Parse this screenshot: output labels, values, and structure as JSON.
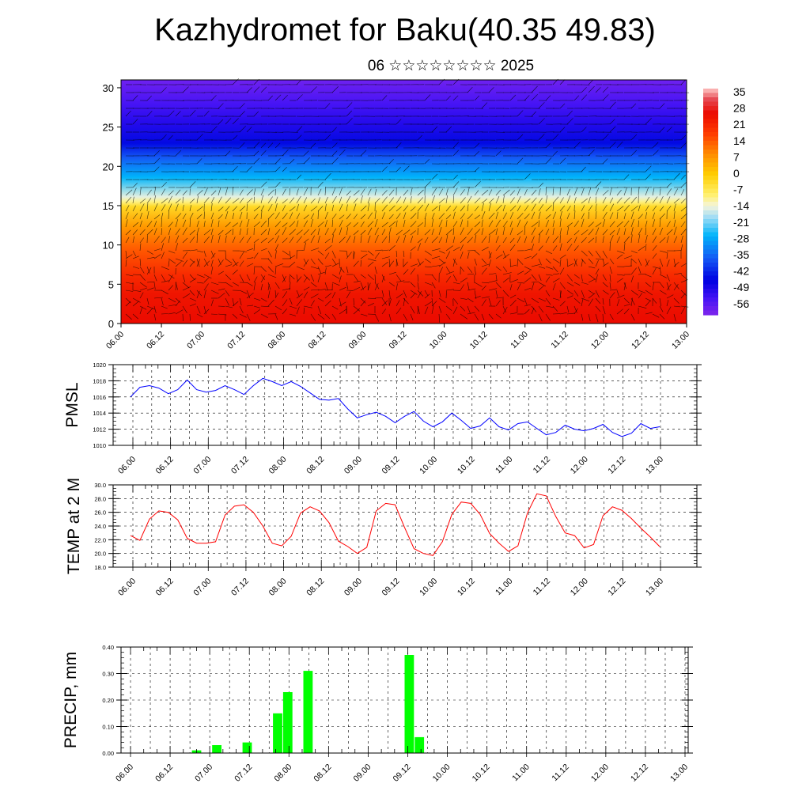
{
  "header": {
    "title": "Kazhydromet for Baku(40.35 49.83)",
    "subtitle": "06 ☆☆☆☆☆☆☆☆ 2025"
  },
  "chart_data": [
    {
      "id": "cross-section",
      "type": "heatmap",
      "title": "",
      "ylabel": "",
      "xlabel": "",
      "x_ticks": [
        "06.00",
        "06.12",
        "07.00",
        "07.12",
        "08.00",
        "08.12",
        "09.00",
        "09.12",
        "10.00",
        "10.12",
        "11.00",
        "11.12",
        "12.00",
        "12.12",
        "13.00"
      ],
      "y_ticks": [
        "0",
        "5",
        "10",
        "15",
        "20",
        "25",
        "30"
      ],
      "ylim": [
        0,
        31
      ],
      "colorbar": {
        "labels": [
          "35",
          "28",
          "21",
          "14",
          "7",
          "0",
          "-7",
          "-14",
          "-21",
          "-28",
          "-35",
          "-42",
          "-49",
          "-56"
        ],
        "range": [
          -63,
          39
        ]
      },
      "has_wind_barbs": true
    },
    {
      "id": "pmsl",
      "type": "line",
      "ylabel": "PMSL",
      "ylim": [
        1010,
        1020
      ],
      "y_ticks": [
        "1010",
        "1012",
        "1014",
        "1016",
        "1018",
        "1020"
      ],
      "x_ticks": [
        "06.00",
        "06.12",
        "07.00",
        "07.12",
        "08.00",
        "08.12",
        "09.00",
        "09.12",
        "10.00",
        "10.12",
        "11.00",
        "11.12",
        "12.00",
        "12.12",
        "13.00"
      ],
      "grid": true,
      "color": "#0000ff",
      "values": [
        1016.0,
        1017.2,
        1017.4,
        1017.1,
        1016.4,
        1016.9,
        1018.1,
        1016.9,
        1016.6,
        1016.8,
        1017.4,
        1016.9,
        1016.3,
        1017.4,
        1018.3,
        1017.9,
        1017.4,
        1017.9,
        1017.3,
        1016.5,
        1015.7,
        1015.6,
        1015.8,
        1014.5,
        1013.4,
        1013.8,
        1014.1,
        1013.6,
        1012.8,
        1013.6,
        1014.2,
        1013.0,
        1012.3,
        1012.9,
        1014.0,
        1013.1,
        1012.1,
        1012.4,
        1013.4,
        1012.3,
        1011.9,
        1012.7,
        1012.9,
        1012.1,
        1011.3,
        1011.6,
        1012.5,
        1012.0,
        1011.8,
        1012.1,
        1012.6,
        1011.6,
        1011.1,
        1011.5,
        1012.7,
        1012.1,
        1012.3
      ]
    },
    {
      "id": "temp",
      "type": "line",
      "ylabel": "TEMP at 2 M",
      "ylim": [
        18,
        30
      ],
      "y_ticks": [
        "18.0",
        "20.0",
        "22.0",
        "24.0",
        "26.0",
        "28.0",
        "30.0"
      ],
      "x_ticks": [
        "06.00",
        "06.12",
        "07.00",
        "07.12",
        "08.00",
        "08.12",
        "09.00",
        "09.12",
        "10.00",
        "10.12",
        "11.00",
        "11.12",
        "12.00",
        "12.12",
        "13.00"
      ],
      "grid": true,
      "color": "#ff0000",
      "values": [
        22.6,
        21.9,
        25.0,
        26.2,
        26.0,
        24.9,
        22.2,
        21.5,
        21.5,
        21.7,
        25.6,
        26.9,
        27.1,
        26.0,
        24.0,
        21.5,
        21.1,
        22.5,
        25.9,
        26.8,
        26.2,
        24.5,
        21.8,
        21.0,
        20.0,
        20.9,
        26.2,
        27.3,
        27.1,
        23.8,
        20.7,
        20.0,
        19.7,
        21.7,
        25.7,
        27.5,
        27.3,
        25.7,
        22.9,
        21.5,
        20.3,
        21.1,
        25.9,
        28.7,
        28.4,
        25.4,
        23.0,
        22.6,
        20.8,
        21.3,
        25.5,
        26.8,
        26.3,
        25.1,
        23.7,
        22.4,
        21.0
      ]
    },
    {
      "id": "precip",
      "type": "bar",
      "ylabel": "PRECIP, mm",
      "ylim": [
        0,
        0.4
      ],
      "y_ticks": [
        "0.00",
        "0.10",
        "0.20",
        "0.30",
        "0.40"
      ],
      "x_ticks": [
        "06.00",
        "06.12",
        "07.00",
        "07.12",
        "08.00",
        "08.12",
        "09.00",
        "09.12",
        "10.00",
        "10.12",
        "11.00",
        "11.12",
        "12.00",
        "12.12",
        "13.00"
      ],
      "grid": true,
      "color": "#00ff00",
      "values": [
        0,
        0,
        0,
        0,
        0,
        0,
        0,
        0.01,
        0,
        0.03,
        0,
        0,
        0.04,
        0,
        0,
        0.15,
        0.23,
        0,
        0.31,
        0,
        0,
        0,
        0,
        0,
        0,
        0,
        0,
        0,
        0.37,
        0.06,
        0,
        0,
        0,
        0,
        0,
        0,
        0,
        0,
        0,
        0,
        0,
        0,
        0,
        0,
        0,
        0,
        0,
        0,
        0,
        0,
        0,
        0,
        0,
        0,
        0,
        0
      ]
    }
  ]
}
